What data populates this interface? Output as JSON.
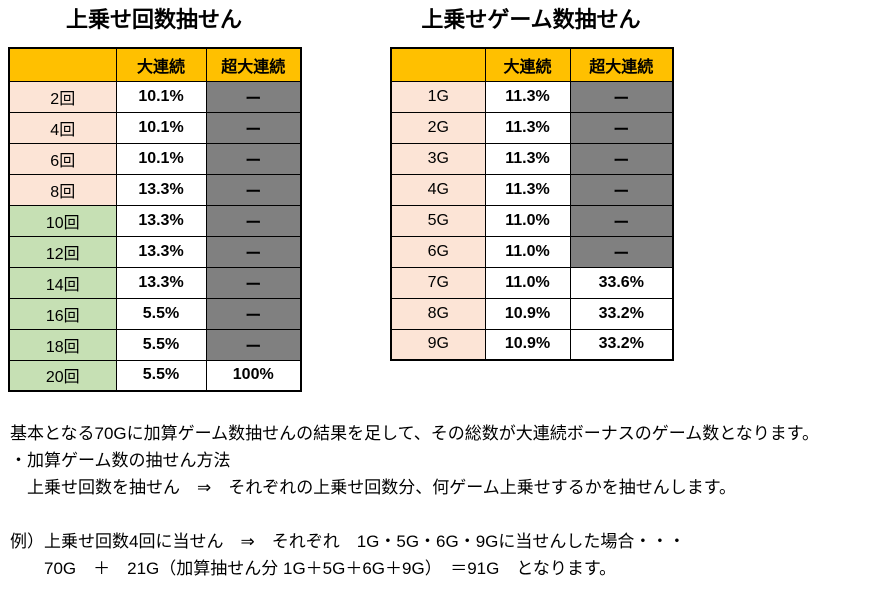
{
  "colors": {
    "header_bg": "#FFC000",
    "pink": "#FCE4D6",
    "green": "#C6E0B4",
    "gray": "#808080",
    "white": "#FFFFFF",
    "border": "#000000"
  },
  "left_table": {
    "title": "上乗せ回数抽せん",
    "headers": [
      "",
      "大連続",
      "超大連続"
    ],
    "rows": [
      {
        "label": "2回",
        "dai": "10.1%",
        "cho": "ー",
        "label_bg": "#FCE4D6",
        "cho_bg": "#808080"
      },
      {
        "label": "4回",
        "dai": "10.1%",
        "cho": "ー",
        "label_bg": "#FCE4D6",
        "cho_bg": "#808080"
      },
      {
        "label": "6回",
        "dai": "10.1%",
        "cho": "ー",
        "label_bg": "#FCE4D6",
        "cho_bg": "#808080"
      },
      {
        "label": "8回",
        "dai": "13.3%",
        "cho": "ー",
        "label_bg": "#FCE4D6",
        "cho_bg": "#808080"
      },
      {
        "label": "10回",
        "dai": "13.3%",
        "cho": "ー",
        "label_bg": "#C6E0B4",
        "cho_bg": "#808080"
      },
      {
        "label": "12回",
        "dai": "13.3%",
        "cho": "ー",
        "label_bg": "#C6E0B4",
        "cho_bg": "#808080"
      },
      {
        "label": "14回",
        "dai": "13.3%",
        "cho": "ー",
        "label_bg": "#C6E0B4",
        "cho_bg": "#808080"
      },
      {
        "label": "16回",
        "dai": "5.5%",
        "cho": "ー",
        "label_bg": "#C6E0B4",
        "cho_bg": "#808080"
      },
      {
        "label": "18回",
        "dai": "5.5%",
        "cho": "ー",
        "label_bg": "#C6E0B4",
        "cho_bg": "#808080"
      },
      {
        "label": "20回",
        "dai": "5.5%",
        "cho": "100%",
        "label_bg": "#C6E0B4",
        "cho_bg": "#FFFFFF"
      }
    ]
  },
  "right_table": {
    "title": "上乗せゲーム数抽せん",
    "headers": [
      "",
      "大連続",
      "超大連続"
    ],
    "rows": [
      {
        "label": "1G",
        "dai": "11.3%",
        "cho": "ー",
        "label_bg": "#FCE4D6",
        "cho_bg": "#808080"
      },
      {
        "label": "2G",
        "dai": "11.3%",
        "cho": "ー",
        "label_bg": "#FCE4D6",
        "cho_bg": "#808080"
      },
      {
        "label": "3G",
        "dai": "11.3%",
        "cho": "ー",
        "label_bg": "#FCE4D6",
        "cho_bg": "#808080"
      },
      {
        "label": "4G",
        "dai": "11.3%",
        "cho": "ー",
        "label_bg": "#FCE4D6",
        "cho_bg": "#808080"
      },
      {
        "label": "5G",
        "dai": "11.0%",
        "cho": "ー",
        "label_bg": "#FCE4D6",
        "cho_bg": "#808080"
      },
      {
        "label": "6G",
        "dai": "11.0%",
        "cho": "ー",
        "label_bg": "#FCE4D6",
        "cho_bg": "#808080"
      },
      {
        "label": "7G",
        "dai": "11.0%",
        "cho": "33.6%",
        "label_bg": "#FCE4D6",
        "cho_bg": "#FFFFFF"
      },
      {
        "label": "8G",
        "dai": "10.9%",
        "cho": "33.2%",
        "label_bg": "#FCE4D6",
        "cho_bg": "#FFFFFF"
      },
      {
        "label": "9G",
        "dai": "10.9%",
        "cho": "33.2%",
        "label_bg": "#FCE4D6",
        "cho_bg": "#FFFFFF"
      }
    ]
  },
  "notes": {
    "line1": "基本となる70Gに加算ゲーム数抽せんの結果を足して、その総数が大連続ボーナスのゲーム数となります。",
    "line2": "・加算ゲーム数の抽せん方法",
    "line3": "　上乗せ回数を抽せん　⇒　それぞれの上乗せ回数分、何ゲーム上乗せするかを抽せんします。",
    "line4": "例）上乗せ回数4回に当せん　⇒　それぞれ　1G・5G・6G・9Gに当せんした場合・・・",
    "line5": "　　70G　＋　21G（加算抽せん分 1G＋5G＋6G＋9G）　＝91G　となります。"
  }
}
